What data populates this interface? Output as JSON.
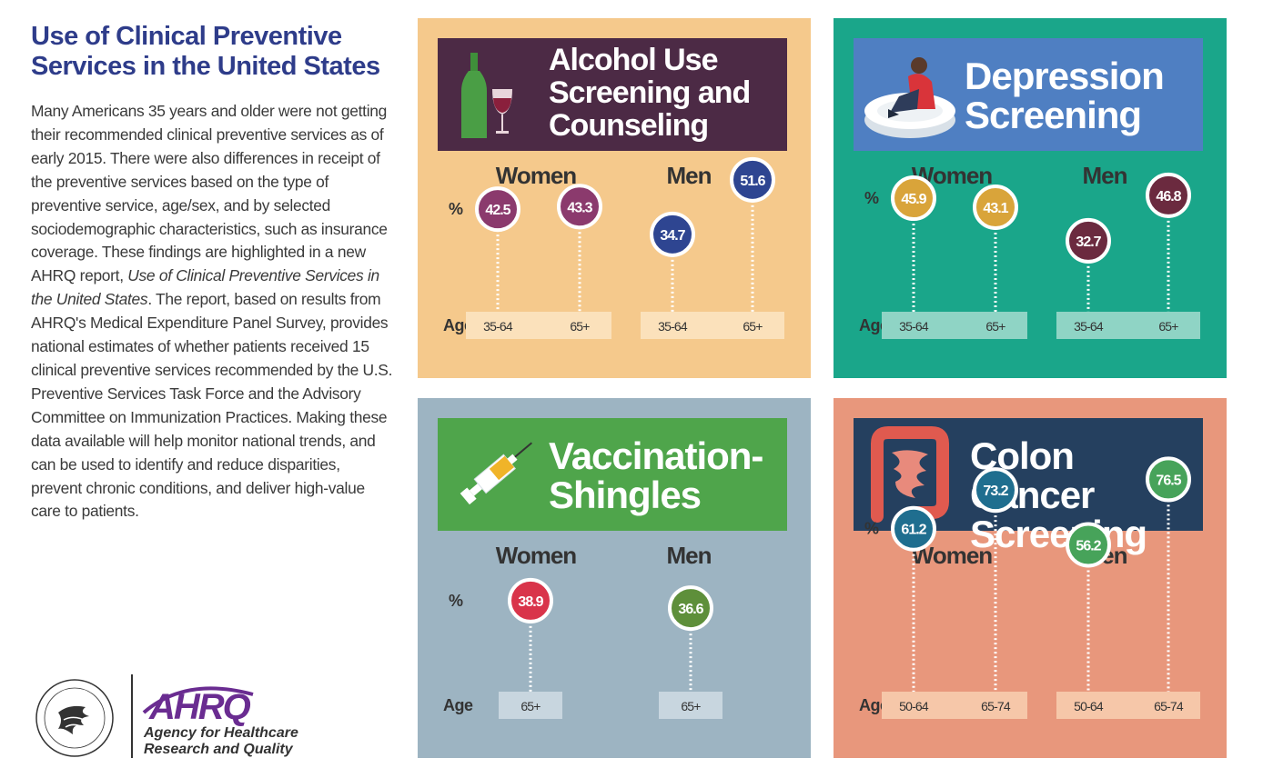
{
  "page": {
    "title_line1": "Use of Clinical Preventive",
    "title_line2": "Services in the United States",
    "body_part1": "Many Americans 35 years and older were not getting their recommended clinical preventive services as of early 2015.  There were also differences in receipt of the preventive services based on the type of preventive service, age/sex, and by selected sociodemographic characteristics, such as insurance coverage. These findings are highlighted in a new AHRQ report, ",
    "body_italic": "Use of Clinical Preventive Services in the United States",
    "body_part2": ". The report, based on results from AHRQ's Medical Expenditure Panel Survey, provides national estimates of whether patients received 15 clinical preventive services recommended by the U.S. Preventive Services Task Force and the Advisory Committee on Immunization Practices. Making these data available will help monitor national trends, and can be used to identify and reduce disparities, prevent chronic conditions, and deliver high-value care to patients."
  },
  "logos": {
    "ahrq": "AHRQ",
    "agency_line1": "Agency for Healthcare",
    "agency_line2": "Research and Quality"
  },
  "chart_data": [
    {
      "type": "scatter",
      "title_lines": [
        "Alcohol Use",
        "Screening and",
        "Counseling"
      ],
      "icon": "wine-bottle-glass-icon",
      "unit_label": "%",
      "axis_label": "Age",
      "colors": {
        "panel": "#f5c98c",
        "header": "#4c2a45",
        "age_box": "#fbe1bb"
      },
      "groups": [
        {
          "name": "Women",
          "color": "#8b3a6d",
          "points": [
            {
              "age": "35-64",
              "value": 42.5
            },
            {
              "age": "65+",
              "value": 43.3
            }
          ]
        },
        {
          "name": "Men",
          "color": "#2e4591",
          "points": [
            {
              "age": "35-64",
              "value": 34.7
            },
            {
              "age": "65+",
              "value": 51.6
            }
          ]
        }
      ]
    },
    {
      "type": "scatter",
      "title_lines": [
        "Depression",
        "Screening"
      ],
      "icon": "sad-person-on-pill-icon",
      "unit_label": "%",
      "axis_label": "Age",
      "colors": {
        "panel": "#1aa68a",
        "header": "#4f7fc2",
        "age_box": "#8fd4c5"
      },
      "groups": [
        {
          "name": "Women",
          "color": "#d9a43a",
          "points": [
            {
              "age": "35-64",
              "value": 45.9
            },
            {
              "age": "65+",
              "value": 43.1
            }
          ]
        },
        {
          "name": "Men",
          "color": "#6b2a3f",
          "points": [
            {
              "age": "35-64",
              "value": 32.7
            },
            {
              "age": "65+",
              "value": 46.8
            }
          ]
        }
      ]
    },
    {
      "type": "scatter",
      "title_lines": [
        "Vaccination-",
        "Shingles"
      ],
      "icon": "syringe-icon",
      "unit_label": "%",
      "axis_label": "Age",
      "colors": {
        "panel": "#9db4c2",
        "header": "#4fa54b",
        "age_box": "#c8d6df"
      },
      "groups": [
        {
          "name": "Women",
          "color": "#d9344a",
          "points": [
            {
              "age": "65+",
              "value": 38.9
            }
          ]
        },
        {
          "name": "Men",
          "color": "#5e8f3a",
          "points": [
            {
              "age": "65+",
              "value": 36.6
            }
          ]
        }
      ]
    },
    {
      "type": "scatter",
      "title_lines": [
        "Colon Cancer",
        "Screening"
      ],
      "icon": "intestine-icon",
      "unit_label": "%",
      "axis_label": "Age",
      "colors": {
        "panel": "#e8977c",
        "header": "#25405f",
        "age_box": "#f6c7a9"
      },
      "groups": [
        {
          "name": "Women",
          "color": "#1f6e8f",
          "points": [
            {
              "age": "50-64",
              "value": 61.2
            },
            {
              "age": "65-74",
              "value": 73.2
            }
          ]
        },
        {
          "name": "Men",
          "color": "#47a35a",
          "points": [
            {
              "age": "50-64",
              "value": 56.2
            },
            {
              "age": "65-74",
              "value": 76.5
            }
          ]
        }
      ]
    }
  ]
}
